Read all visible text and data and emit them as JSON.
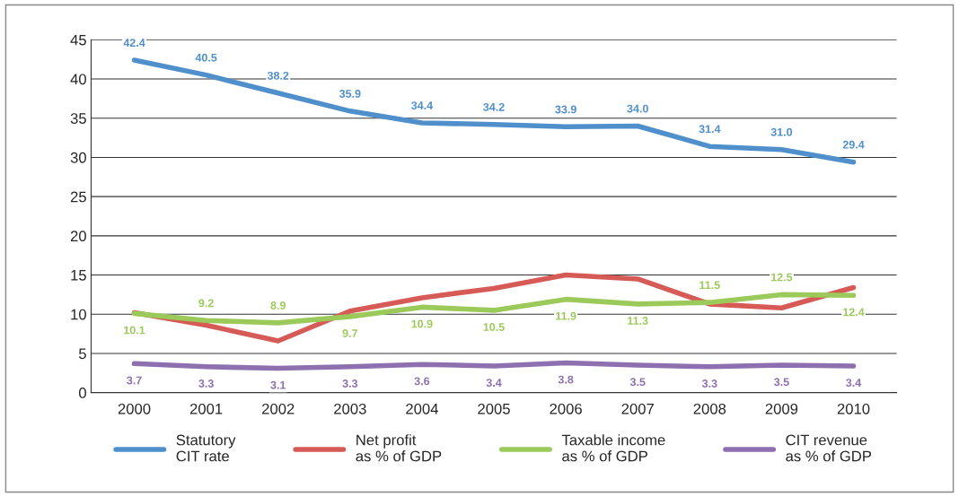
{
  "chart_data": {
    "type": "line",
    "categories": [
      "2000",
      "2001",
      "2002",
      "2003",
      "2004",
      "2005",
      "2006",
      "2007",
      "2008",
      "2009",
      "2010"
    ],
    "series": [
      {
        "name": "Statutory\nCIT rate",
        "color": "#4f8fcc",
        "values": [
          42.4,
          40.5,
          38.2,
          35.9,
          34.4,
          34.2,
          33.9,
          34.0,
          31.4,
          31.0,
          29.4
        ],
        "value_labels": [
          "42.4",
          "40.5",
          "38.2",
          "35.9",
          "34.4",
          "34.2",
          "33.9",
          "34.0",
          "31.4",
          "31.0",
          "29.4"
        ]
      },
      {
        "name": "Net profit\nas % of GDP",
        "color": "#d65b56",
        "values": [
          10.2,
          8.6,
          6.6,
          10.4,
          12.1,
          13.3,
          15.0,
          14.5,
          11.3,
          10.8,
          13.4
        ]
      },
      {
        "name": "Taxable income\nas % of GDP",
        "color": "#9bc95a",
        "values": [
          10.1,
          9.2,
          8.9,
          9.7,
          10.9,
          10.5,
          11.9,
          11.3,
          11.5,
          12.5,
          12.4
        ],
        "value_labels": [
          "10.1",
          "9.2",
          "8.9",
          "9.7",
          "10.9",
          "10.5",
          "11.9",
          "11.3",
          "11.5",
          "12.5",
          "12.4"
        ]
      },
      {
        "name": "CIT revenue\nas % of GDP",
        "color": "#8e6fb0",
        "values": [
          3.7,
          3.3,
          3.1,
          3.3,
          3.6,
          3.4,
          3.8,
          3.5,
          3.3,
          3.5,
          3.4
        ],
        "value_labels": [
          "3.7",
          "3.3",
          "3.1",
          "3.3",
          "3.6",
          "3.4",
          "3.8",
          "3.5",
          "3.3",
          "3.5",
          "3.4"
        ]
      }
    ],
    "ylim": [
      0,
      45
    ],
    "yticks": [
      0,
      5,
      10,
      15,
      20,
      25,
      30,
      35,
      40,
      45
    ],
    "grid": "y",
    "legend": "bottom",
    "marker": "none",
    "line_style": "solid"
  }
}
